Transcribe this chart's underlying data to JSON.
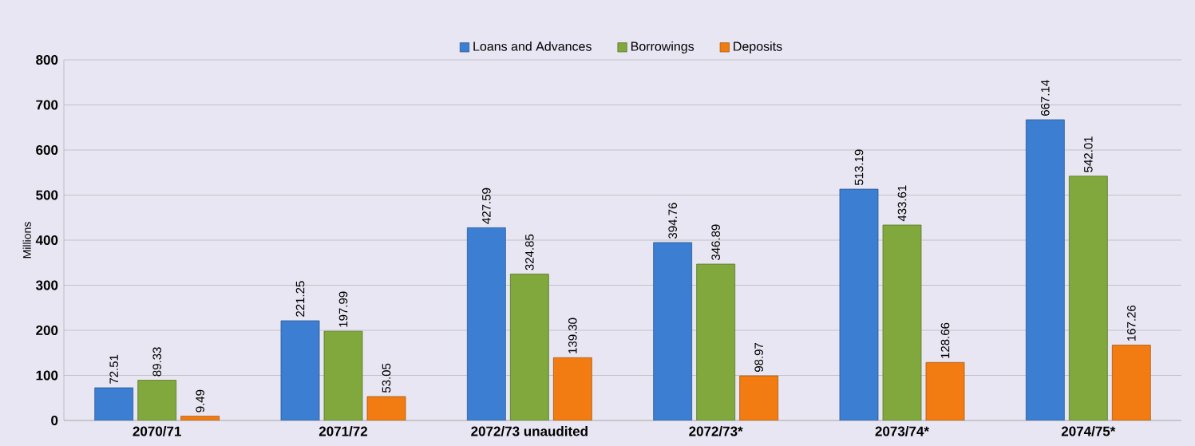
{
  "chart_data": {
    "type": "bar",
    "ylabel": "Millions",
    "categories": [
      "2070/71",
      "2071/72",
      "2072/73 unaudited",
      "2072/73*",
      "2073/74*",
      "2074/75*"
    ],
    "series": [
      {
        "name": "Loans and Advances",
        "color": "#3c7fd2",
        "values": [
          72.51,
          221.25,
          427.59,
          394.76,
          513.19,
          667.14
        ],
        "value_labels": [
          "72.51",
          "221.25",
          "427.59",
          "394.76",
          "513.19",
          "667.14"
        ]
      },
      {
        "name": "Borrowings",
        "color": "#80a83c",
        "values": [
          89.33,
          197.99,
          324.85,
          346.89,
          433.61,
          542.01
        ],
        "value_labels": [
          "89.33",
          "197.99",
          "324.85",
          "346.89",
          "433.61",
          "542.01"
        ]
      },
      {
        "name": "Deposits",
        "color": "#f27c12",
        "values": [
          9.49,
          53.05,
          139.3,
          98.97,
          128.66,
          167.26
        ],
        "value_labels": [
          "9.49",
          "53.05",
          "139.30",
          "98.97",
          "128.66",
          "167.26"
        ]
      }
    ],
    "ylim": [
      0,
      800
    ],
    "yticks": [
      0,
      100,
      200,
      300,
      400,
      500,
      600,
      700,
      800
    ],
    "grid": "y",
    "legend": "top"
  }
}
